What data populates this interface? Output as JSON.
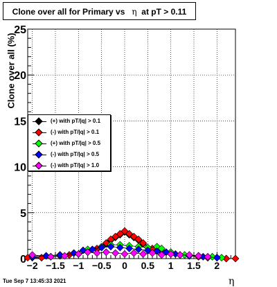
{
  "title_prefix": "Clone  over all for Primary vs",
  "title_eta": "η",
  "title_suffix": "at pT > 0.11",
  "timestamp": "Tue Sep  7 13:45:33 2021",
  "chart_data": {
    "type": "scatter",
    "xlabel": "η",
    "ylabel": "Clone  over all (%)",
    "xlim": [
      -2.1,
      2.4
    ],
    "ylim": [
      0,
      25
    ],
    "grid": true,
    "legend_position": "left-middle",
    "xticks": [
      -2,
      -1.5,
      -1,
      -0.5,
      0,
      0.5,
      1,
      1.5,
      2
    ],
    "xtick_labels": [
      "−2",
      "−1.5",
      "−1",
      "−0.5",
      "0",
      "0.5",
      "1",
      "1.5",
      "2"
    ],
    "yticks": [
      0,
      5,
      10,
      15,
      20,
      25
    ],
    "ytick_labels": [
      "0",
      "5",
      "10",
      "15",
      "20",
      "25"
    ],
    "series": [
      {
        "name": "(+) with pT/|q| > 0.1",
        "color": "#000000",
        "x": [
          -2.0,
          -1.8,
          -1.6,
          -1.4,
          -1.2,
          -1.0,
          -0.8,
          -0.6,
          -0.4,
          -0.3,
          -0.2,
          -0.1,
          0.0,
          0.1,
          0.2,
          0.3,
          0.4,
          0.6,
          0.8,
          1.0,
          1.2,
          1.4,
          1.6,
          1.8,
          2.0,
          2.2
        ],
        "y": [
          0.1,
          0.1,
          0.2,
          0.3,
          0.4,
          0.5,
          0.7,
          1.0,
          1.6,
          2.0,
          2.3,
          2.6,
          2.9,
          2.6,
          2.3,
          2.0,
          1.6,
          1.0,
          0.7,
          0.5,
          0.4,
          0.3,
          0.2,
          0.1,
          0.1,
          0.0
        ]
      },
      {
        "name": "(-) with pT/|q| > 0.1",
        "color": "#ff0000",
        "x": [
          -2.1,
          -1.8,
          -1.6,
          -1.4,
          -1.2,
          -1.0,
          -0.8,
          -0.6,
          -0.4,
          -0.3,
          -0.2,
          -0.1,
          0.0,
          0.1,
          0.2,
          0.3,
          0.4,
          0.6,
          0.8,
          1.0,
          1.2,
          1.4,
          1.6,
          1.8,
          2.0,
          2.2,
          2.4
        ],
        "y": [
          0.1,
          0.1,
          0.2,
          0.3,
          0.4,
          0.5,
          0.8,
          1.1,
          1.7,
          2.1,
          2.4,
          2.7,
          3.0,
          2.7,
          2.4,
          2.1,
          1.7,
          1.1,
          0.8,
          0.5,
          0.4,
          0.3,
          0.2,
          0.1,
          0.1,
          0.0,
          0.0
        ]
      },
      {
        "name": "(+) with pT/|q| > 0.5",
        "color": "#00ff00",
        "x": [
          -2.0,
          -1.7,
          -1.4,
          -1.1,
          -0.8,
          -0.5,
          -0.3,
          -0.1,
          0.1,
          0.3,
          0.5,
          0.7,
          0.8,
          1.0,
          1.3,
          1.6,
          1.9,
          2.1
        ],
        "y": [
          0.2,
          0.3,
          0.4,
          0.6,
          1.0,
          1.3,
          1.5,
          1.5,
          1.4,
          1.3,
          1.2,
          1.3,
          1.1,
          0.7,
          0.4,
          0.3,
          0.2,
          0.1
        ]
      },
      {
        "name": "(-) with pT/|q| > 0.5",
        "color": "#0000ff",
        "x": [
          -2.0,
          -1.7,
          -1.4,
          -1.1,
          -0.9,
          -0.7,
          -0.5,
          -0.3,
          -0.1,
          0.1,
          0.3,
          0.5,
          0.7,
          0.9,
          1.1,
          1.4,
          1.7,
          2.0
        ],
        "y": [
          0.2,
          0.3,
          0.4,
          0.6,
          0.9,
          1.0,
          1.2,
          1.3,
          1.2,
          1.1,
          1.0,
          0.9,
          0.8,
          0.7,
          0.5,
          0.3,
          0.2,
          0.1
        ]
      },
      {
        "name": "(-) with pT/|q| > 1.0",
        "color": "#ff00ff",
        "x": [
          -2.0,
          -1.6,
          -1.3,
          -1.0,
          -0.8,
          -0.6,
          -0.4,
          -0.2,
          0.0,
          0.2,
          0.4,
          0.6,
          0.8,
          1.0,
          1.2,
          1.4,
          1.6,
          1.8
        ],
        "y": [
          0.4,
          0.2,
          0.3,
          0.5,
          0.7,
          0.6,
          0.7,
          0.6,
          0.5,
          0.6,
          0.5,
          0.6,
          0.4,
          0.5,
          0.4,
          0.4,
          0.3,
          0.2
        ]
      }
    ]
  }
}
